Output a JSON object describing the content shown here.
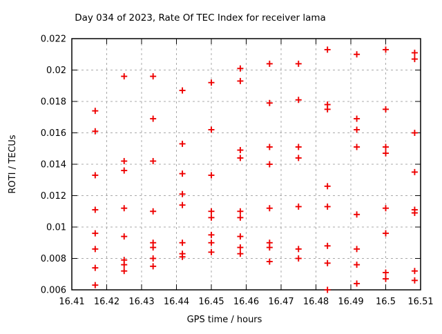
{
  "chart_data": {
    "type": "scatter",
    "title": "Day 034 of 2023, Rate Of TEC Index for receiver lama",
    "xlabel": "GPS time / hours",
    "ylabel": "ROTI / TECUs",
    "xlim": [
      16.41,
      16.51
    ],
    "ylim": [
      0.006,
      0.022
    ],
    "xticks": [
      16.41,
      16.42,
      16.43,
      16.44,
      16.45,
      16.46,
      16.47,
      16.48,
      16.49,
      16.5,
      16.51
    ],
    "xtick_labels": [
      "16.41",
      "16.42",
      "16.43",
      "16.44",
      "16.45",
      "16.46",
      "16.47",
      "16.48",
      "16.49",
      "16.5",
      "16.51"
    ],
    "yticks": [
      0.006,
      0.008,
      0.01,
      0.012,
      0.014,
      0.016,
      0.018,
      0.02,
      0.022
    ],
    "ytick_labels": [
      "0.006",
      "0.008",
      "0.01",
      "0.012",
      "0.014",
      "0.016",
      "0.018",
      "0.02",
      "0.022"
    ],
    "grid": true,
    "grid_style": "dashed",
    "legend_position": "none",
    "marker": {
      "shape": "plus",
      "color": "#ee0000",
      "size": 9
    },
    "colors": {
      "axis": "#000000",
      "grid": "#a8a8a8",
      "background": "#ffffff",
      "text": "#000000"
    },
    "series": [
      {
        "name": "ROTI",
        "points": [
          [
            16.4167,
            0.0174
          ],
          [
            16.4167,
            0.0161
          ],
          [
            16.4167,
            0.0133
          ],
          [
            16.4167,
            0.0111
          ],
          [
            16.4167,
            0.0096
          ],
          [
            16.4167,
            0.0086
          ],
          [
            16.4167,
            0.0074
          ],
          [
            16.4167,
            0.0063
          ],
          [
            16.425,
            0.0196
          ],
          [
            16.425,
            0.0142
          ],
          [
            16.425,
            0.0136
          ],
          [
            16.425,
            0.0112
          ],
          [
            16.425,
            0.0094
          ],
          [
            16.425,
            0.0079
          ],
          [
            16.425,
            0.0076
          ],
          [
            16.425,
            0.0072
          ],
          [
            16.4333,
            0.0196
          ],
          [
            16.4333,
            0.0169
          ],
          [
            16.4333,
            0.0142
          ],
          [
            16.4333,
            0.011
          ],
          [
            16.4333,
            0.009
          ],
          [
            16.4333,
            0.0087
          ],
          [
            16.4333,
            0.008
          ],
          [
            16.4333,
            0.0075
          ],
          [
            16.4417,
            0.0187
          ],
          [
            16.4417,
            0.0153
          ],
          [
            16.4417,
            0.0134
          ],
          [
            16.4417,
            0.0121
          ],
          [
            16.4417,
            0.0114
          ],
          [
            16.4417,
            0.009
          ],
          [
            16.4417,
            0.0083
          ],
          [
            16.4417,
            0.0081
          ],
          [
            16.45,
            0.0192
          ],
          [
            16.45,
            0.0162
          ],
          [
            16.45,
            0.0133
          ],
          [
            16.45,
            0.011
          ],
          [
            16.45,
            0.0106
          ],
          [
            16.45,
            0.0095
          ],
          [
            16.45,
            0.009
          ],
          [
            16.45,
            0.0084
          ],
          [
            16.4583,
            0.0201
          ],
          [
            16.4583,
            0.0193
          ],
          [
            16.4583,
            0.0149
          ],
          [
            16.4583,
            0.0144
          ],
          [
            16.4583,
            0.011
          ],
          [
            16.4583,
            0.0106
          ],
          [
            16.4583,
            0.0094
          ],
          [
            16.4583,
            0.0087
          ],
          [
            16.4583,
            0.0083
          ],
          [
            16.4667,
            0.0204
          ],
          [
            16.4667,
            0.0179
          ],
          [
            16.4667,
            0.0151
          ],
          [
            16.4667,
            0.014
          ],
          [
            16.4667,
            0.0112
          ],
          [
            16.4667,
            0.009
          ],
          [
            16.4667,
            0.0087
          ],
          [
            16.4667,
            0.0078
          ],
          [
            16.475,
            0.0204
          ],
          [
            16.475,
            0.0181
          ],
          [
            16.475,
            0.0151
          ],
          [
            16.475,
            0.0144
          ],
          [
            16.475,
            0.0113
          ],
          [
            16.475,
            0.0086
          ],
          [
            16.475,
            0.008
          ],
          [
            16.4833,
            0.0213
          ],
          [
            16.4833,
            0.0178
          ],
          [
            16.4833,
            0.0175
          ],
          [
            16.4833,
            0.0126
          ],
          [
            16.4833,
            0.0113
          ],
          [
            16.4833,
            0.0088
          ],
          [
            16.4833,
            0.0077
          ],
          [
            16.4833,
            0.006
          ],
          [
            16.4917,
            0.021
          ],
          [
            16.4917,
            0.0169
          ],
          [
            16.4917,
            0.0162
          ],
          [
            16.4917,
            0.0151
          ],
          [
            16.4917,
            0.0108
          ],
          [
            16.4917,
            0.0086
          ],
          [
            16.4917,
            0.0076
          ],
          [
            16.4917,
            0.0064
          ],
          [
            16.5,
            0.0213
          ],
          [
            16.5,
            0.0175
          ],
          [
            16.5,
            0.0151
          ],
          [
            16.5,
            0.0147
          ],
          [
            16.5,
            0.0112
          ],
          [
            16.5,
            0.0096
          ],
          [
            16.5,
            0.0071
          ],
          [
            16.5,
            0.0067
          ],
          [
            16.5083,
            0.0211
          ],
          [
            16.5083,
            0.0207
          ],
          [
            16.5083,
            0.016
          ],
          [
            16.5083,
            0.0135
          ],
          [
            16.5083,
            0.0111
          ],
          [
            16.5083,
            0.0109
          ],
          [
            16.5083,
            0.0072
          ],
          [
            16.5083,
            0.0066
          ]
        ]
      }
    ]
  }
}
